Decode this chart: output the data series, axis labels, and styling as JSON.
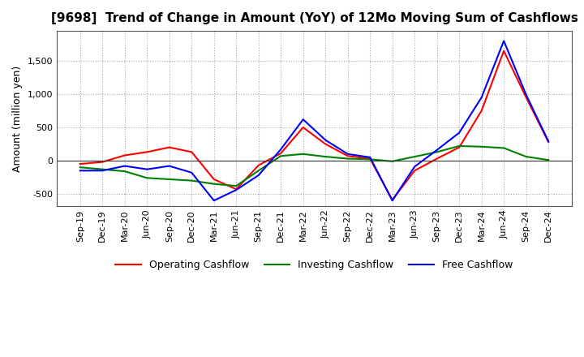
{
  "title": "[9698]  Trend of Change in Amount (YoY) of 12Mo Moving Sum of Cashflows",
  "ylabel": "Amount (million yen)",
  "x_labels": [
    "Sep-19",
    "Dec-19",
    "Mar-20",
    "Jun-20",
    "Sep-20",
    "Dec-20",
    "Mar-21",
    "Jun-21",
    "Sep-21",
    "Dec-21",
    "Mar-22",
    "Jun-22",
    "Sep-22",
    "Dec-22",
    "Mar-23",
    "Jun-23",
    "Sep-23",
    "Dec-23",
    "Mar-24",
    "Jun-24",
    "Sep-24",
    "Dec-24"
  ],
  "operating": [
    -50,
    -20,
    80,
    130,
    200,
    130,
    -280,
    -430,
    -70,
    110,
    500,
    250,
    70,
    30,
    -590,
    -150,
    30,
    200,
    750,
    1650,
    950,
    280
  ],
  "investing": [
    -100,
    -130,
    -160,
    -260,
    -280,
    -300,
    -350,
    -380,
    -150,
    70,
    100,
    60,
    30,
    20,
    -10,
    60,
    130,
    220,
    210,
    190,
    60,
    10
  ],
  "free": [
    -150,
    -150,
    -80,
    -130,
    -80,
    -180,
    -600,
    -440,
    -220,
    170,
    620,
    310,
    100,
    50,
    -600,
    -90,
    160,
    420,
    950,
    1800,
    990,
    290
  ],
  "ylim": [
    -680,
    1950
  ],
  "yticks": [
    -500,
    0,
    500,
    1000,
    1500
  ],
  "colors": {
    "operating": "#ff0000",
    "investing": "#008000",
    "free": "#0000ff"
  },
  "legend_labels": [
    "Operating Cashflow",
    "Investing Cashflow",
    "Free Cashflow"
  ],
  "grid_color": "#aaaaaa",
  "background_color": "#ffffff",
  "title_fontsize": 11,
  "axis_fontsize": 9,
  "tick_fontsize": 8,
  "linewidth": 1.5
}
